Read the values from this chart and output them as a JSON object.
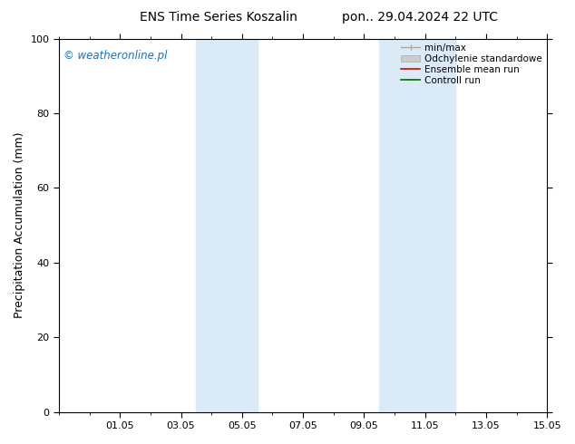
{
  "title_left": "ENS Time Series Koszalin",
  "title_right": "pon.. 29.04.2024 22 UTC",
  "ylabel": "Precipitation Accumulation (mm)",
  "ylim": [
    0,
    100
  ],
  "yticks": [
    0,
    20,
    40,
    60,
    80,
    100
  ],
  "xlim": [
    0.0,
    16.0
  ],
  "xtick_labels": [
    "01.05",
    "03.05",
    "05.05",
    "07.05",
    "09.05",
    "11.05",
    "13.05",
    "15.05"
  ],
  "xtick_positions": [
    2,
    4,
    6,
    8,
    10,
    12,
    14,
    16
  ],
  "shaded_regions": [
    {
      "xmin": 4.5,
      "xmax": 6.5
    },
    {
      "xmin": 10.5,
      "xmax": 13.0
    }
  ],
  "shade_color": "#daeaf7",
  "watermark_text": "© weatheronline.pl",
  "watermark_color": "#1a6fc4",
  "legend_labels": [
    "min/max",
    "Odchylenie standardowe",
    "Ensemble mean run",
    "Controll run"
  ],
  "legend_line_color": "#aaaaaa",
  "legend_patch_color": "#cccccc",
  "legend_ensemble_color": "#dd0000",
  "legend_control_color": "#006600",
  "background_color": "#ffffff",
  "plot_bg_color": "#ffffff",
  "title_fontsize": 10,
  "axis_fontsize": 9,
  "tick_fontsize": 8,
  "legend_fontsize": 7.5
}
